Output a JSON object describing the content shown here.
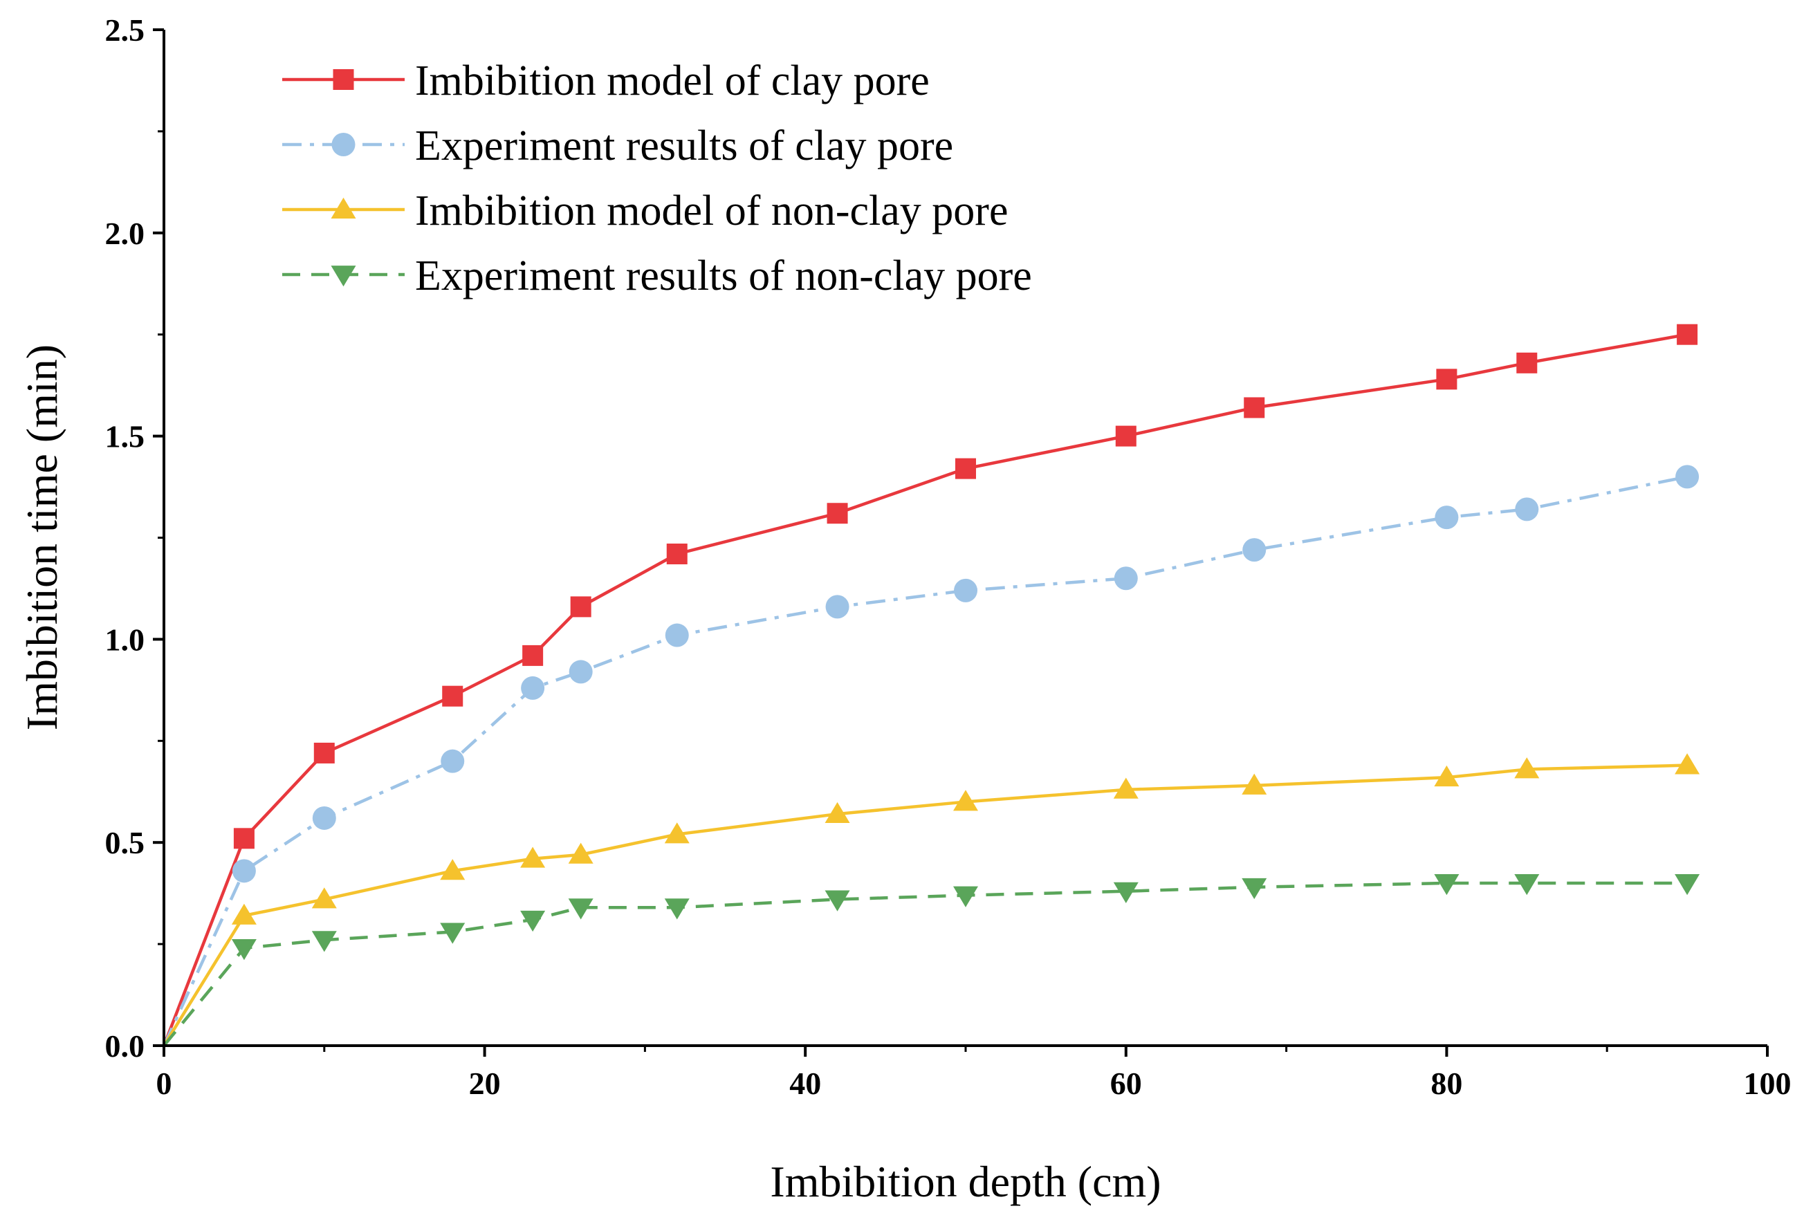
{
  "chart_data": {
    "type": "line",
    "title": "",
    "xlabel": "Imbibition depth (cm)",
    "ylabel": "Imbibition time (min)",
    "xlim": [
      0,
      100
    ],
    "ylim": [
      0,
      2.5
    ],
    "xticks": [
      0,
      20,
      40,
      60,
      80,
      100
    ],
    "xtick_labels": [
      "0",
      "20",
      "40",
      "60",
      "80",
      "100"
    ],
    "yticks": [
      0,
      0.5,
      1.0,
      1.5,
      2.0,
      2.5
    ],
    "ytick_labels": [
      "0.0",
      "0.5",
      "1.0",
      "1.5",
      "2.0",
      "2.5"
    ],
    "grid": false,
    "legend_position": "top-left",
    "series": [
      {
        "name": "Imbibition model of clay pore",
        "color": "#e8383d",
        "marker": "square",
        "line": "solid",
        "x": [
          0,
          5,
          10,
          18,
          23,
          26,
          32,
          42,
          50,
          60,
          68,
          80,
          85,
          95
        ],
        "y": [
          0,
          0.51,
          0.72,
          0.86,
          0.96,
          1.08,
          1.21,
          1.31,
          1.42,
          1.5,
          1.57,
          1.64,
          1.68,
          1.75
        ]
      },
      {
        "name": "Experiment results of clay pore",
        "color": "#9dc3e6",
        "marker": "circle",
        "line": "dashdot",
        "x": [
          0,
          5,
          10,
          18,
          23,
          26,
          32,
          42,
          50,
          60,
          68,
          80,
          85,
          95
        ],
        "y": [
          0,
          0.43,
          0.56,
          0.7,
          0.88,
          0.92,
          1.01,
          1.08,
          1.12,
          1.15,
          1.22,
          1.3,
          1.32,
          1.4
        ]
      },
      {
        "name": "Imbibition model of non-clay pore",
        "color": "#f5c22d",
        "marker": "triangle-up",
        "line": "solid",
        "x": [
          0,
          5,
          10,
          18,
          23,
          26,
          32,
          42,
          50,
          60,
          68,
          80,
          85,
          95
        ],
        "y": [
          0,
          0.32,
          0.36,
          0.43,
          0.46,
          0.47,
          0.52,
          0.57,
          0.6,
          0.63,
          0.64,
          0.66,
          0.68,
          0.69
        ]
      },
      {
        "name": "Experiment results of non-clay pore",
        "color": "#5aa55a",
        "marker": "triangle-down",
        "line": "dashed",
        "x": [
          0,
          5,
          10,
          18,
          23,
          26,
          32,
          42,
          50,
          60,
          68,
          80,
          85,
          95
        ],
        "y": [
          0,
          0.24,
          0.26,
          0.28,
          0.31,
          0.34,
          0.34,
          0.36,
          0.37,
          0.38,
          0.39,
          0.4,
          0.4,
          0.4
        ]
      }
    ]
  }
}
